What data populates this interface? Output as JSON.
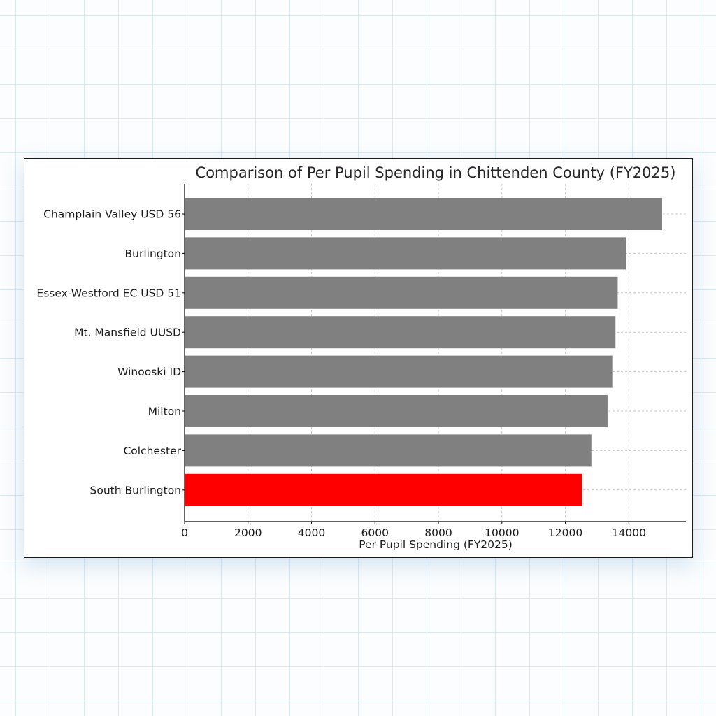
{
  "chart_data": {
    "type": "bar",
    "orientation": "horizontal",
    "title": "Comparison of Per Pupil Spending in Chittenden County (FY2025)",
    "xlabel": "Per Pupil Spending (FY2025)",
    "ylabel": "",
    "categories": [
      "Champlain Valley USD 56",
      "Burlington",
      "Essex-Westford EC USD 51",
      "Mt. Mansfield UUSD",
      "Winooski ID",
      "Milton",
      "Colchester",
      "South Burlington"
    ],
    "values": [
      15050,
      13910,
      13650,
      13580,
      13480,
      13330,
      12820,
      12530
    ],
    "bar_colors": [
      "#808080",
      "#808080",
      "#808080",
      "#808080",
      "#808080",
      "#808080",
      "#808080",
      "#ff0000"
    ],
    "xlim": [
      0,
      15800
    ],
    "xticks": [
      0,
      2000,
      4000,
      6000,
      8000,
      10000,
      12000,
      14000
    ],
    "grid": true,
    "legend": "none"
  }
}
